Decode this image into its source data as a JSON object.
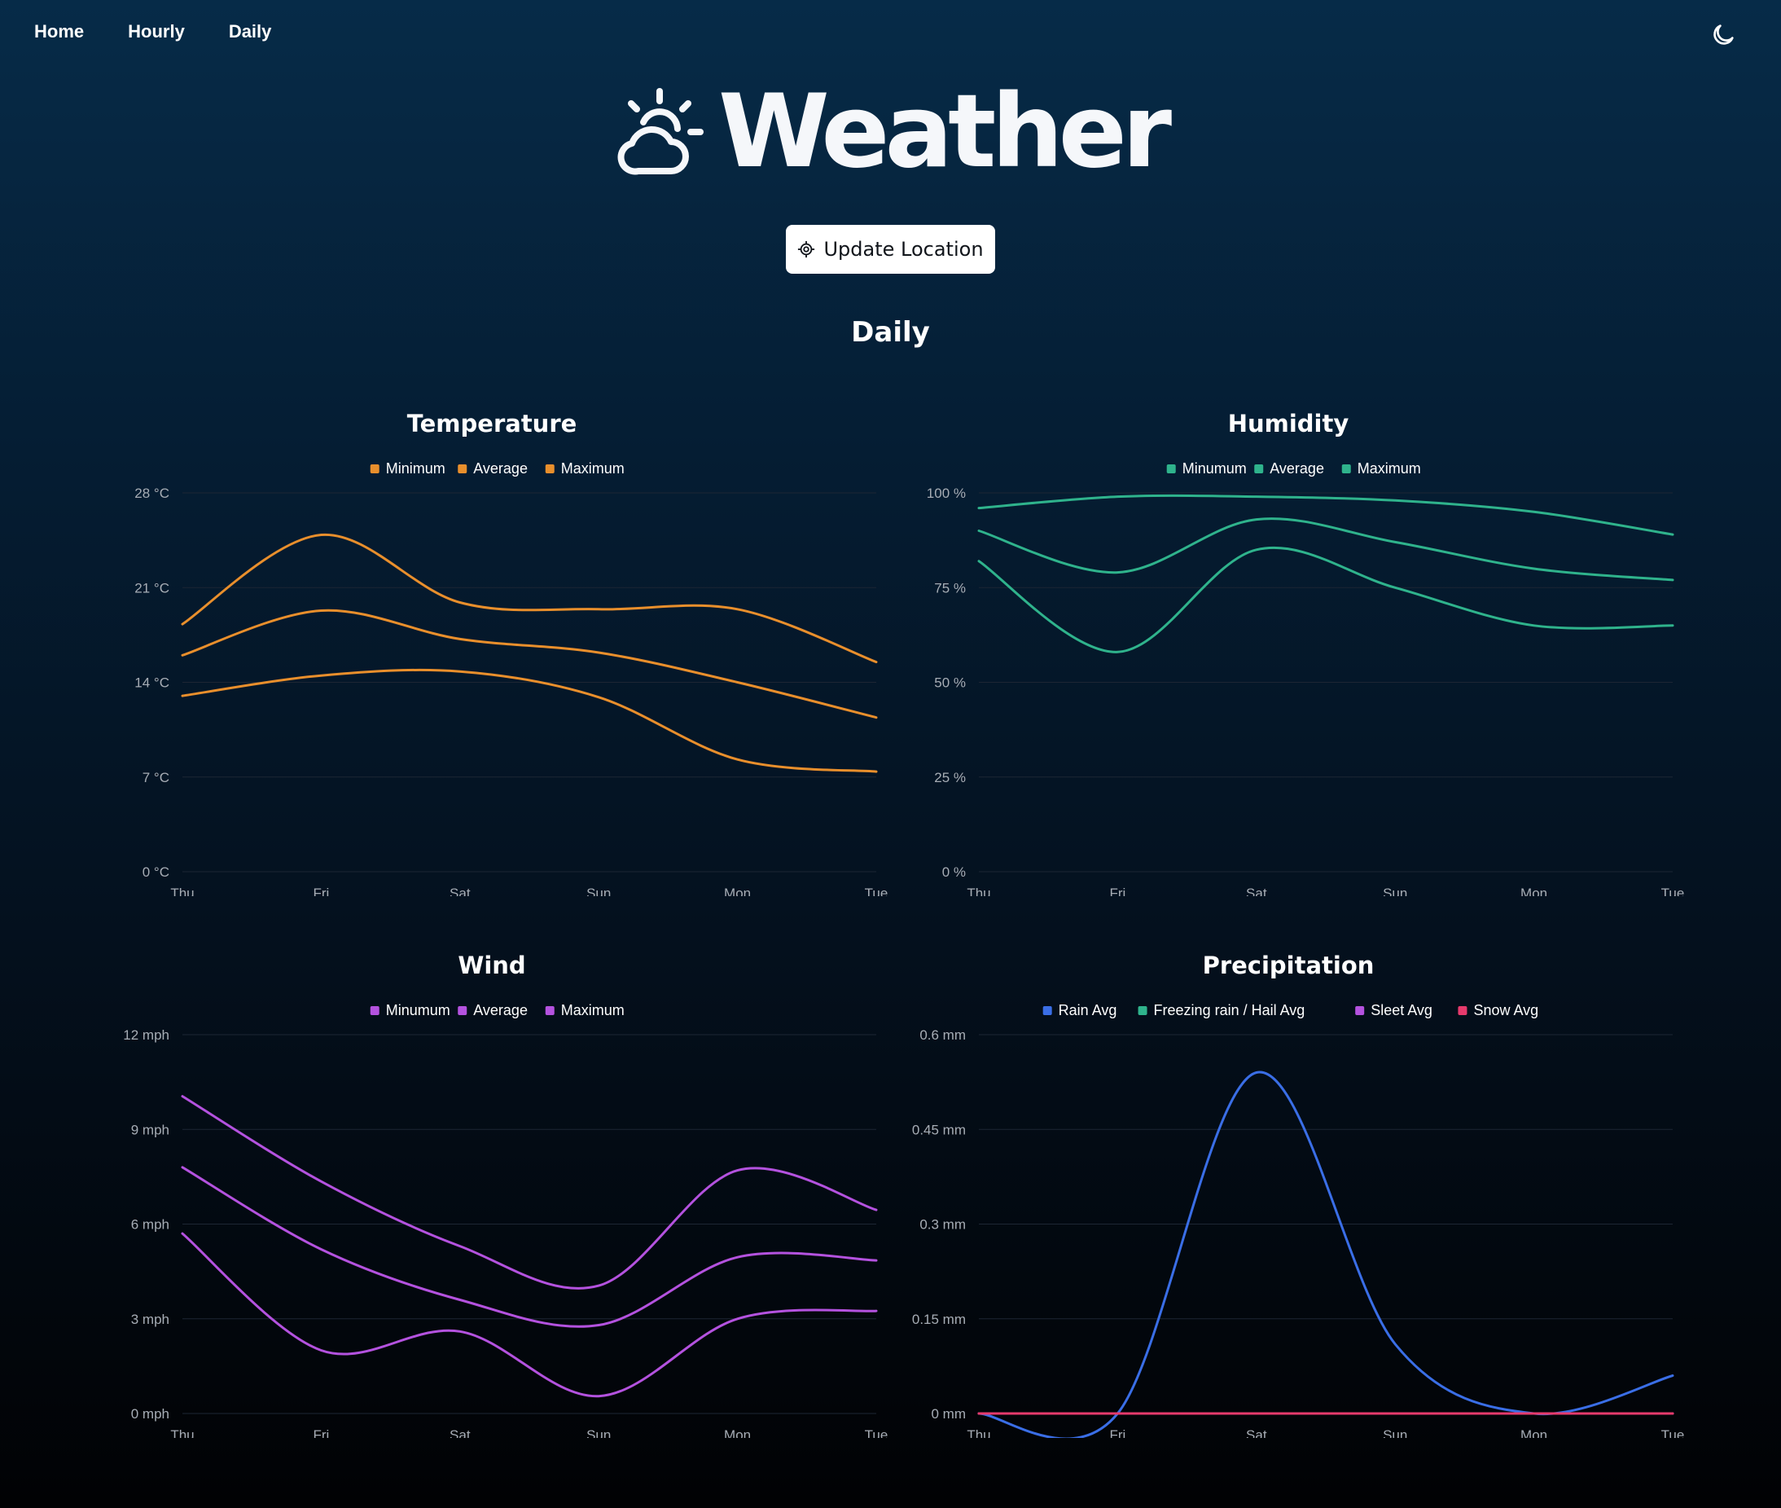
{
  "nav": {
    "items": [
      {
        "label": "Home"
      },
      {
        "label": "Hourly"
      },
      {
        "label": "Daily"
      }
    ],
    "theme_icon": "moon-icon"
  },
  "brand": {
    "title": "Weather",
    "icon": "partly-cloudy-icon"
  },
  "update_button": {
    "label": "Update Location",
    "icon": "crosshair-icon"
  },
  "section": {
    "title": "Daily"
  },
  "chart_data": [
    {
      "id": "temp",
      "type": "line",
      "title": "Temperature",
      "categories": [
        "Thu",
        "Fri",
        "Sat",
        "Sun",
        "Mon",
        "Tue"
      ],
      "y_ticks": [
        "0 °C",
        "7 °C",
        "14 °C",
        "21 °C",
        "28 °C"
      ],
      "ylim": [
        0,
        28
      ],
      "grid": true,
      "legend": "top-center",
      "series": [
        {
          "name": "Minimum",
          "color": "#e98f2c",
          "values": [
            13,
            14.5,
            14.8,
            12.9,
            8.3,
            7.4
          ],
          "legend_color": "#e98f2c"
        },
        {
          "name": "Average",
          "color": "#e98f2c",
          "values": [
            16,
            19.3,
            17.2,
            16.2,
            14,
            11.4
          ],
          "legend_color": "#e98f2c"
        },
        {
          "name": "Maximum",
          "color": "#e98f2c",
          "values": [
            18.3,
            24.9,
            19.9,
            19.4,
            19.4,
            15.5
          ],
          "legend_color": "#e98f2c"
        }
      ]
    },
    {
      "id": "hum",
      "type": "line",
      "title": "Humidity",
      "categories": [
        "Thu",
        "Fri",
        "Sat",
        "Sun",
        "Mon",
        "Tue"
      ],
      "y_ticks": [
        "0 %",
        "25 %",
        "50 %",
        "75 %",
        "100 %"
      ],
      "ylim": [
        0,
        100
      ],
      "grid": true,
      "legend": "top-center",
      "series": [
        {
          "name": "Minumum",
          "color": "#2fb38c",
          "values": [
            82,
            58,
            85,
            75,
            65,
            65
          ],
          "legend_color": "#2fb38c"
        },
        {
          "name": "Average",
          "color": "#2fb38c",
          "values": [
            90,
            79,
            93,
            87,
            80,
            77
          ],
          "legend_color": "#2fb38c"
        },
        {
          "name": "Maximum",
          "color": "#2fb38c",
          "values": [
            96,
            99,
            99,
            98,
            95,
            89
          ],
          "legend_color": "#2fb38c"
        }
      ]
    },
    {
      "id": "wind",
      "type": "line",
      "title": "Wind",
      "categories": [
        "Thu",
        "Fri",
        "Sat",
        "Sun",
        "Mon",
        "Tue"
      ],
      "y_ticks": [
        "0 mph",
        "3 mph",
        "6 mph",
        "9 mph",
        "12 mph"
      ],
      "ylim": [
        0,
        12
      ],
      "grid": true,
      "legend": "top-center",
      "series": [
        {
          "name": "Minumum",
          "color": "#b452df",
          "values": [
            5.7,
            2.0,
            2.6,
            0.55,
            3.0,
            3.25
          ],
          "legend_color": "#b452df"
        },
        {
          "name": "Average",
          "color": "#b452df",
          "values": [
            7.8,
            5.2,
            3.6,
            2.8,
            4.95,
            4.85
          ],
          "legend_color": "#b452df"
        },
        {
          "name": "Maximum",
          "color": "#b452df",
          "values": [
            10.05,
            7.35,
            5.3,
            4.05,
            7.7,
            6.45
          ],
          "legend_color": "#b452df"
        }
      ]
    },
    {
      "id": "precip",
      "type": "line",
      "title": "Precipitation",
      "categories": [
        "Thu",
        "Fri",
        "Sat",
        "Sun",
        "Mon",
        "Tue"
      ],
      "y_ticks": [
        "0 mm",
        "0.15 mm",
        "0.3 mm",
        "0.45 mm",
        "0.6 mm"
      ],
      "ylim": [
        0,
        0.6
      ],
      "grid": true,
      "legend": "top-center",
      "series": [
        {
          "name": "Rain Avg",
          "color": "#3a6ee6",
          "values": [
            0,
            0,
            0.54,
            0.11,
            0,
            0.06
          ],
          "legend_color": "#3a6ee6"
        },
        {
          "name": "Freezing rain / Hail Avg",
          "color": "#2fb38c",
          "values": [
            0,
            0,
            0,
            0,
            0,
            0
          ],
          "legend_color": "#2fb38c"
        },
        {
          "name": "Sleet Avg",
          "color": "#b452df",
          "values": [
            0,
            0,
            0,
            0,
            0,
            0
          ],
          "legend_color": "#b452df"
        },
        {
          "name": "Snow Avg",
          "color": "#e63a6c",
          "values": [
            0,
            0,
            0,
            0,
            0,
            0
          ],
          "legend_color": "#e63a6c"
        }
      ]
    }
  ]
}
